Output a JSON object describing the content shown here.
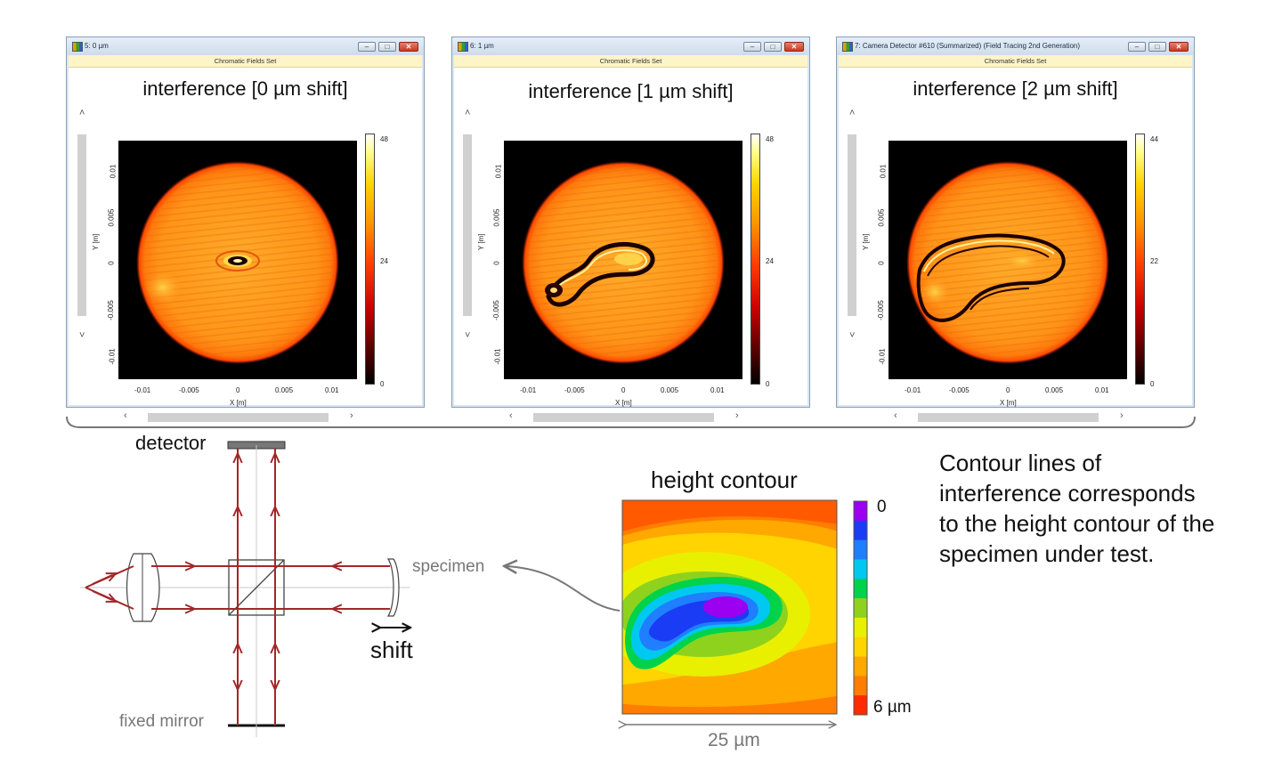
{
  "windows": [
    {
      "title": "5: 0 µm",
      "subtitle": "Chromatic Fields Set",
      "plot_title": "interference [0 µm shift]",
      "colorbar_ticks": [
        "48",
        "24",
        "0"
      ],
      "xlabel": "X [m]",
      "ylabel": "Y [m]",
      "xticks": [
        "-0.01",
        "-0.005",
        "0",
        "0.005",
        "0.01"
      ],
      "yticks": [
        "0.01",
        "0.005",
        "0",
        "-0.005",
        "-0.01"
      ]
    },
    {
      "title": "6: 1 µm",
      "subtitle": "Chromatic Fields Set",
      "plot_title": "interference [1 µm shift]",
      "colorbar_ticks": [
        "48",
        "24",
        "0"
      ],
      "xlabel": "X [m]",
      "ylabel": "Y [m]",
      "xticks": [
        "-0.01",
        "-0.005",
        "0",
        "0.005",
        "0.01"
      ],
      "yticks": [
        "0.01",
        "0.005",
        "0",
        "-0.005",
        "-0.01"
      ]
    },
    {
      "title": "7: Camera Detector #610 (Summarized) (Field Tracing 2nd Generation)",
      "subtitle": "Chromatic Fields Set",
      "plot_title": "interference [2 µm shift]",
      "colorbar_ticks": [
        "44",
        "22",
        "0"
      ],
      "xlabel": "X [m]",
      "ylabel": "Y [m]",
      "xticks": [
        "-0.01",
        "-0.005",
        "0",
        "0.005",
        "0.01"
      ],
      "yticks": [
        "0.01",
        "0.005",
        "0",
        "-0.005",
        "-0.01"
      ]
    }
  ],
  "window_buttons": {
    "minimize": "–",
    "maximize": "□",
    "close": "✕"
  },
  "scroll_glyphs": {
    "up": "˄",
    "down": "˅",
    "left": "‹",
    "right": "›"
  },
  "setup": {
    "detector_label": "detector",
    "specimen_label": "specimen",
    "shift_label": "shift",
    "fixed_mirror_label": "fixed mirror"
  },
  "height_contour": {
    "title": "height contour",
    "scale_top": "0",
    "scale_bottom": "6 µm",
    "width_label": "25 µm",
    "scale_colors": [
      "#9b00f0",
      "#1a3cf5",
      "#1f7fff",
      "#00c8f0",
      "#00d24a",
      "#8fd21e",
      "#e8f000",
      "#ffd400",
      "#ffa800",
      "#ff7d00",
      "#ff2a00"
    ]
  },
  "caption": [
    "Contour lines of",
    "interference corresponds",
    "to the height contour of the",
    "specimen under test."
  ],
  "colors": {
    "beam": "#a3262a",
    "gray_label": "#777777",
    "window_border": "#8a9fb6"
  },
  "icons": [
    "minimize-icon",
    "maximize-icon",
    "close-icon",
    "scroll-up-icon",
    "scroll-down-icon",
    "scroll-left-icon",
    "scroll-right-icon",
    "double-arrow-icon"
  ]
}
